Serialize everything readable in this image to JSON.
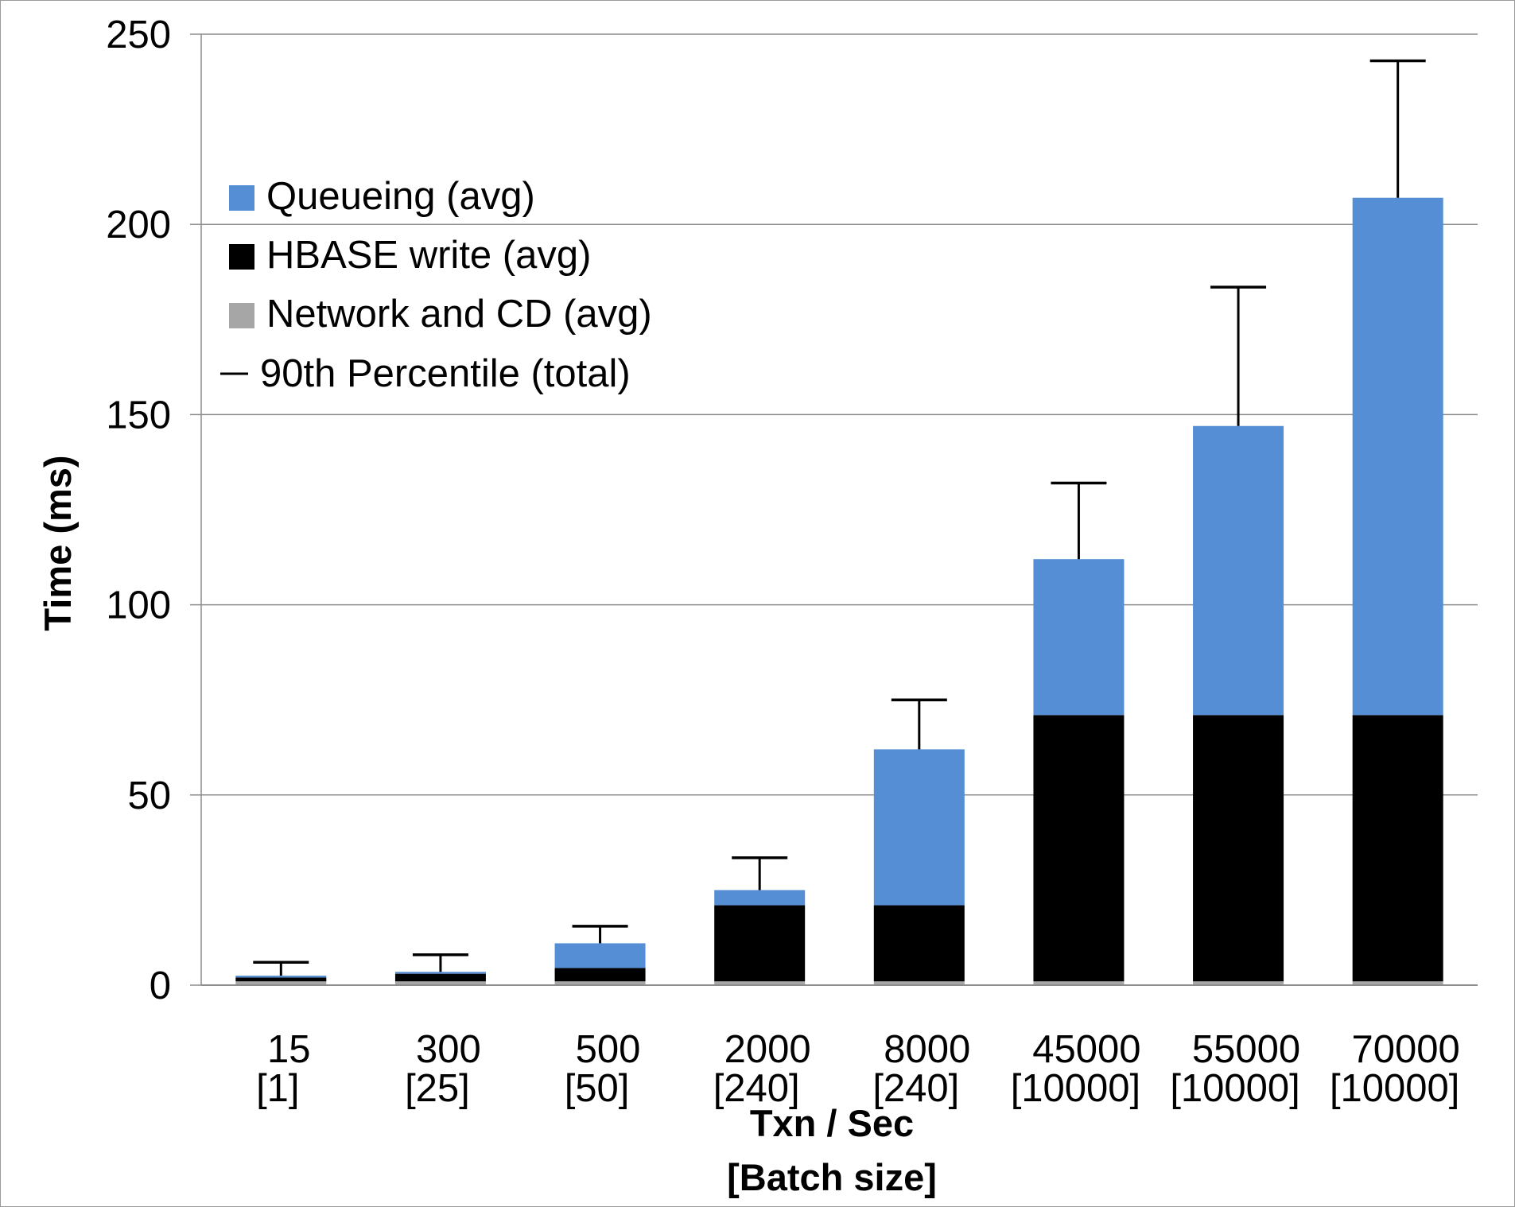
{
  "chart_data": {
    "type": "bar",
    "stacked": true,
    "title": "",
    "xlabel": [
      "Txn / Sec",
      "[Batch size]"
    ],
    "ylabel": "Time (ms)",
    "ylim": [
      0,
      250
    ],
    "yticks": [
      0,
      50,
      100,
      150,
      200,
      250
    ],
    "grid": true,
    "legend_position": "top-left",
    "categories": [
      {
        "rate": "15",
        "batch": "[1]"
      },
      {
        "rate": "300",
        "batch": "[25]"
      },
      {
        "rate": "500",
        "batch": "[50]"
      },
      {
        "rate": "2000",
        "batch": "[240]"
      },
      {
        "rate": "8000",
        "batch": "[240]"
      },
      {
        "rate": "45000",
        "batch": "[10000]"
      },
      {
        "rate": "55000",
        "batch": "[10000]"
      },
      {
        "rate": "70000",
        "batch": "[10000]"
      }
    ],
    "series": [
      {
        "name": "Network and CD (avg)",
        "color": "#a6a6a6",
        "values": [
          1,
          1,
          1,
          1,
          1,
          1,
          1,
          1
        ]
      },
      {
        "name": "HBASE write (avg)",
        "color": "#000000",
        "values": [
          1,
          2,
          3.5,
          20,
          20,
          70,
          70,
          70
        ]
      },
      {
        "name": "Queueing (avg)",
        "color": "#558ed5",
        "values": [
          0.5,
          0.5,
          6.5,
          4,
          41,
          41,
          76,
          136
        ]
      }
    ],
    "error_bar": {
      "name": "90th Percentile (total)",
      "color": "#000000",
      "values": [
        6,
        8,
        15.5,
        33.5,
        75,
        132,
        183.5,
        243
      ]
    },
    "legend_order": [
      "Queueing (avg)",
      "HBASE write (avg)",
      "Network and CD (avg)",
      "90th Percentile (total)"
    ]
  }
}
